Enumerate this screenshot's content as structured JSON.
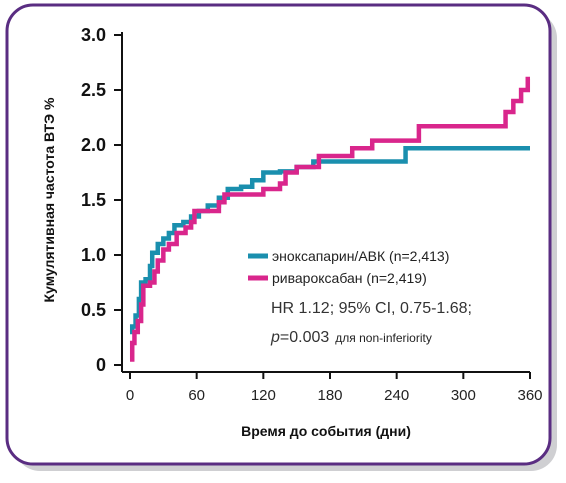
{
  "colors": {
    "border": "#5a2d82",
    "axis": "#111111",
    "enox": "#1a8fae",
    "riva": "#d9268c"
  },
  "chart_data": {
    "type": "line",
    "step": true,
    "ylabel": "Кумулятивная частота ВТЭ %",
    "xlabel": "Время до события (дни)",
    "ylim": [
      0,
      3.0
    ],
    "xlim": [
      0,
      360
    ],
    "yticks": [
      "3.0",
      "2.5",
      "2.0",
      "1.5",
      "1.0",
      "0.5",
      "0"
    ],
    "ytick_values": [
      3.0,
      2.5,
      2.0,
      1.5,
      1.0,
      0.5,
      0
    ],
    "xticks": [
      "0",
      "60",
      "120",
      "180",
      "240",
      "300",
      "360"
    ],
    "xtick_values": [
      0,
      60,
      120,
      180,
      240,
      300,
      360
    ],
    "grid": false,
    "legend_position": "center-right",
    "series": [
      {
        "name": "эноксапарин/АВК (n=2,413)",
        "color": "#1a8fae",
        "points": [
          [
            0,
            0.3
          ],
          [
            2,
            0.35
          ],
          [
            5,
            0.45
          ],
          [
            8,
            0.6
          ],
          [
            10,
            0.75
          ],
          [
            14,
            0.78
          ],
          [
            18,
            0.9
          ],
          [
            20,
            1.02
          ],
          [
            25,
            1.1
          ],
          [
            30,
            1.15
          ],
          [
            35,
            1.2
          ],
          [
            40,
            1.27
          ],
          [
            48,
            1.3
          ],
          [
            55,
            1.35
          ],
          [
            62,
            1.4
          ],
          [
            70,
            1.45
          ],
          [
            80,
            1.52
          ],
          [
            88,
            1.6
          ],
          [
            100,
            1.62
          ],
          [
            110,
            1.68
          ],
          [
            120,
            1.75
          ],
          [
            135,
            1.76
          ],
          [
            150,
            1.8
          ],
          [
            165,
            1.85
          ],
          [
            200,
            1.85
          ],
          [
            248,
            1.97
          ],
          [
            360,
            1.97
          ]
        ]
      },
      {
        "name": "ривароксабан (n=2,419)",
        "color": "#d9268c",
        "points": [
          [
            0,
            0.05
          ],
          [
            2,
            0.2
          ],
          [
            4,
            0.3
          ],
          [
            7,
            0.4
          ],
          [
            10,
            0.55
          ],
          [
            12,
            0.72
          ],
          [
            18,
            0.75
          ],
          [
            22,
            0.85
          ],
          [
            25,
            0.95
          ],
          [
            30,
            1.05
          ],
          [
            35,
            1.1
          ],
          [
            42,
            1.2
          ],
          [
            50,
            1.25
          ],
          [
            55,
            1.3
          ],
          [
            58,
            1.4
          ],
          [
            80,
            1.48
          ],
          [
            85,
            1.55
          ],
          [
            120,
            1.6
          ],
          [
            135,
            1.65
          ],
          [
            140,
            1.75
          ],
          [
            150,
            1.8
          ],
          [
            170,
            1.9
          ],
          [
            200,
            1.97
          ],
          [
            218,
            2.04
          ],
          [
            260,
            2.17
          ],
          [
            338,
            2.3
          ],
          [
            345,
            2.4
          ],
          [
            352,
            2.5
          ],
          [
            358,
            2.6
          ],
          [
            360,
            2.6
          ]
        ]
      }
    ],
    "annotations": {
      "hr_line": "HR 1.12; 95% CI, 0.75-1.68;",
      "p_label": "p",
      "p_value": "=0.003",
      "p_note": "для non-inferiority"
    }
  }
}
